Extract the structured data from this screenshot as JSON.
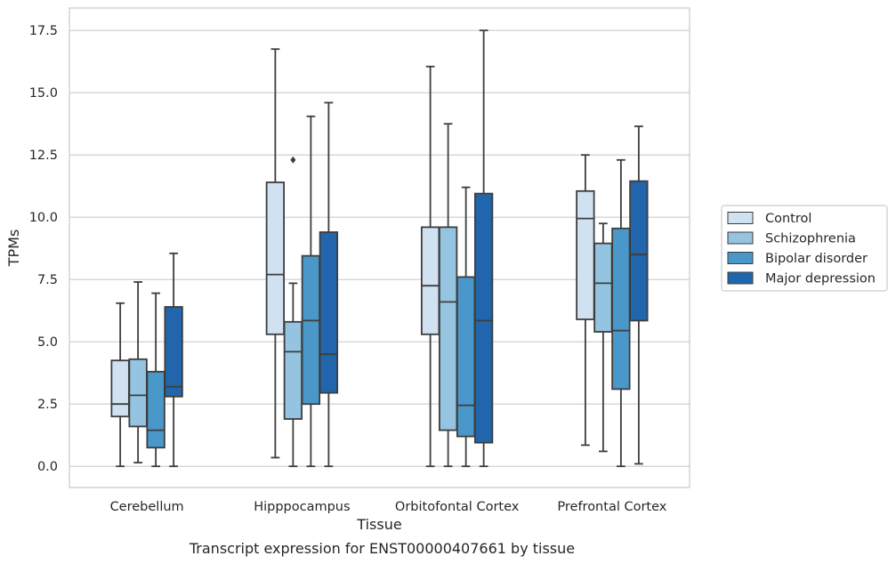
{
  "caption": "Transcript expression for ENST00000407661 by tissue",
  "colors": {
    "Control": "#d0e1f2",
    "Schizophrenia": "#94c4df",
    "Bipolar disorder": "#4a98c9",
    "Major depression": "#2166ac",
    "outline": "#3d3d3d",
    "grid": "#cccccc",
    "frame": "#cccccc"
  },
  "chart_data": {
    "type": "box",
    "xlabel": "Tissue",
    "ylabel": "TPMs",
    "ylim": [
      -0.85,
      18.4
    ],
    "yticks": [
      0.0,
      2.5,
      5.0,
      7.5,
      10.0,
      12.5,
      15.0,
      17.5
    ],
    "ytick_labels": [
      "0.0",
      "2.5",
      "5.0",
      "7.5",
      "10.0",
      "12.5",
      "15.0",
      "17.5"
    ],
    "grid": true,
    "legend_position": "right",
    "categories": [
      "Cerebellum",
      "Hipppocampus",
      "Orbitofontal Cortex",
      "Prefrontal Cortex"
    ],
    "series": [
      {
        "name": "Control",
        "boxes": [
          {
            "whisker_low": 0.0,
            "q1": 2.0,
            "median": 2.5,
            "q3": 4.25,
            "whisker_high": 6.55,
            "outliers": []
          },
          {
            "whisker_low": 0.35,
            "q1": 5.3,
            "median": 7.7,
            "q3": 11.4,
            "whisker_high": 16.75,
            "outliers": []
          },
          {
            "whisker_low": 0.0,
            "q1": 5.3,
            "median": 7.25,
            "q3": 9.6,
            "whisker_high": 16.05,
            "outliers": []
          },
          {
            "whisker_low": 0.85,
            "q1": 5.9,
            "median": 9.95,
            "q3": 11.05,
            "whisker_high": 12.5,
            "outliers": []
          }
        ]
      },
      {
        "name": "Schizophrenia",
        "boxes": [
          {
            "whisker_low": 0.15,
            "q1": 1.6,
            "median": 2.85,
            "q3": 4.3,
            "whisker_high": 7.4,
            "outliers": []
          },
          {
            "whisker_low": 0.0,
            "q1": 1.9,
            "median": 4.6,
            "q3": 5.8,
            "whisker_high": 7.35,
            "outliers": [
              12.3
            ]
          },
          {
            "whisker_low": 0.0,
            "q1": 1.45,
            "median": 6.6,
            "q3": 9.6,
            "whisker_high": 13.75,
            "outliers": []
          },
          {
            "whisker_low": 0.6,
            "q1": 5.4,
            "median": 7.35,
            "q3": 8.95,
            "whisker_high": 9.75,
            "outliers": []
          }
        ]
      },
      {
        "name": "Bipolar disorder",
        "boxes": [
          {
            "whisker_low": 0.0,
            "q1": 0.75,
            "median": 1.45,
            "q3": 3.8,
            "whisker_high": 6.95,
            "outliers": []
          },
          {
            "whisker_low": 0.0,
            "q1": 2.5,
            "median": 5.85,
            "q3": 8.45,
            "whisker_high": 14.05,
            "outliers": []
          },
          {
            "whisker_low": 0.0,
            "q1": 1.2,
            "median": 2.45,
            "q3": 7.6,
            "whisker_high": 11.2,
            "outliers": []
          },
          {
            "whisker_low": 0.0,
            "q1": 3.1,
            "median": 5.45,
            "q3": 9.55,
            "whisker_high": 12.3,
            "outliers": []
          }
        ]
      },
      {
        "name": "Major depression",
        "boxes": [
          {
            "whisker_low": 0.0,
            "q1": 2.8,
            "median": 3.2,
            "q3": 6.4,
            "whisker_high": 8.55,
            "outliers": []
          },
          {
            "whisker_low": 0.0,
            "q1": 2.95,
            "median": 4.5,
            "q3": 9.4,
            "whisker_high": 14.6,
            "outliers": []
          },
          {
            "whisker_low": 0.0,
            "q1": 0.95,
            "median": 5.85,
            "q3": 10.95,
            "whisker_high": 17.5,
            "outliers": []
          },
          {
            "whisker_low": 0.1,
            "q1": 5.85,
            "median": 8.5,
            "q3": 11.45,
            "whisker_high": 13.65,
            "outliers": []
          }
        ]
      }
    ]
  }
}
